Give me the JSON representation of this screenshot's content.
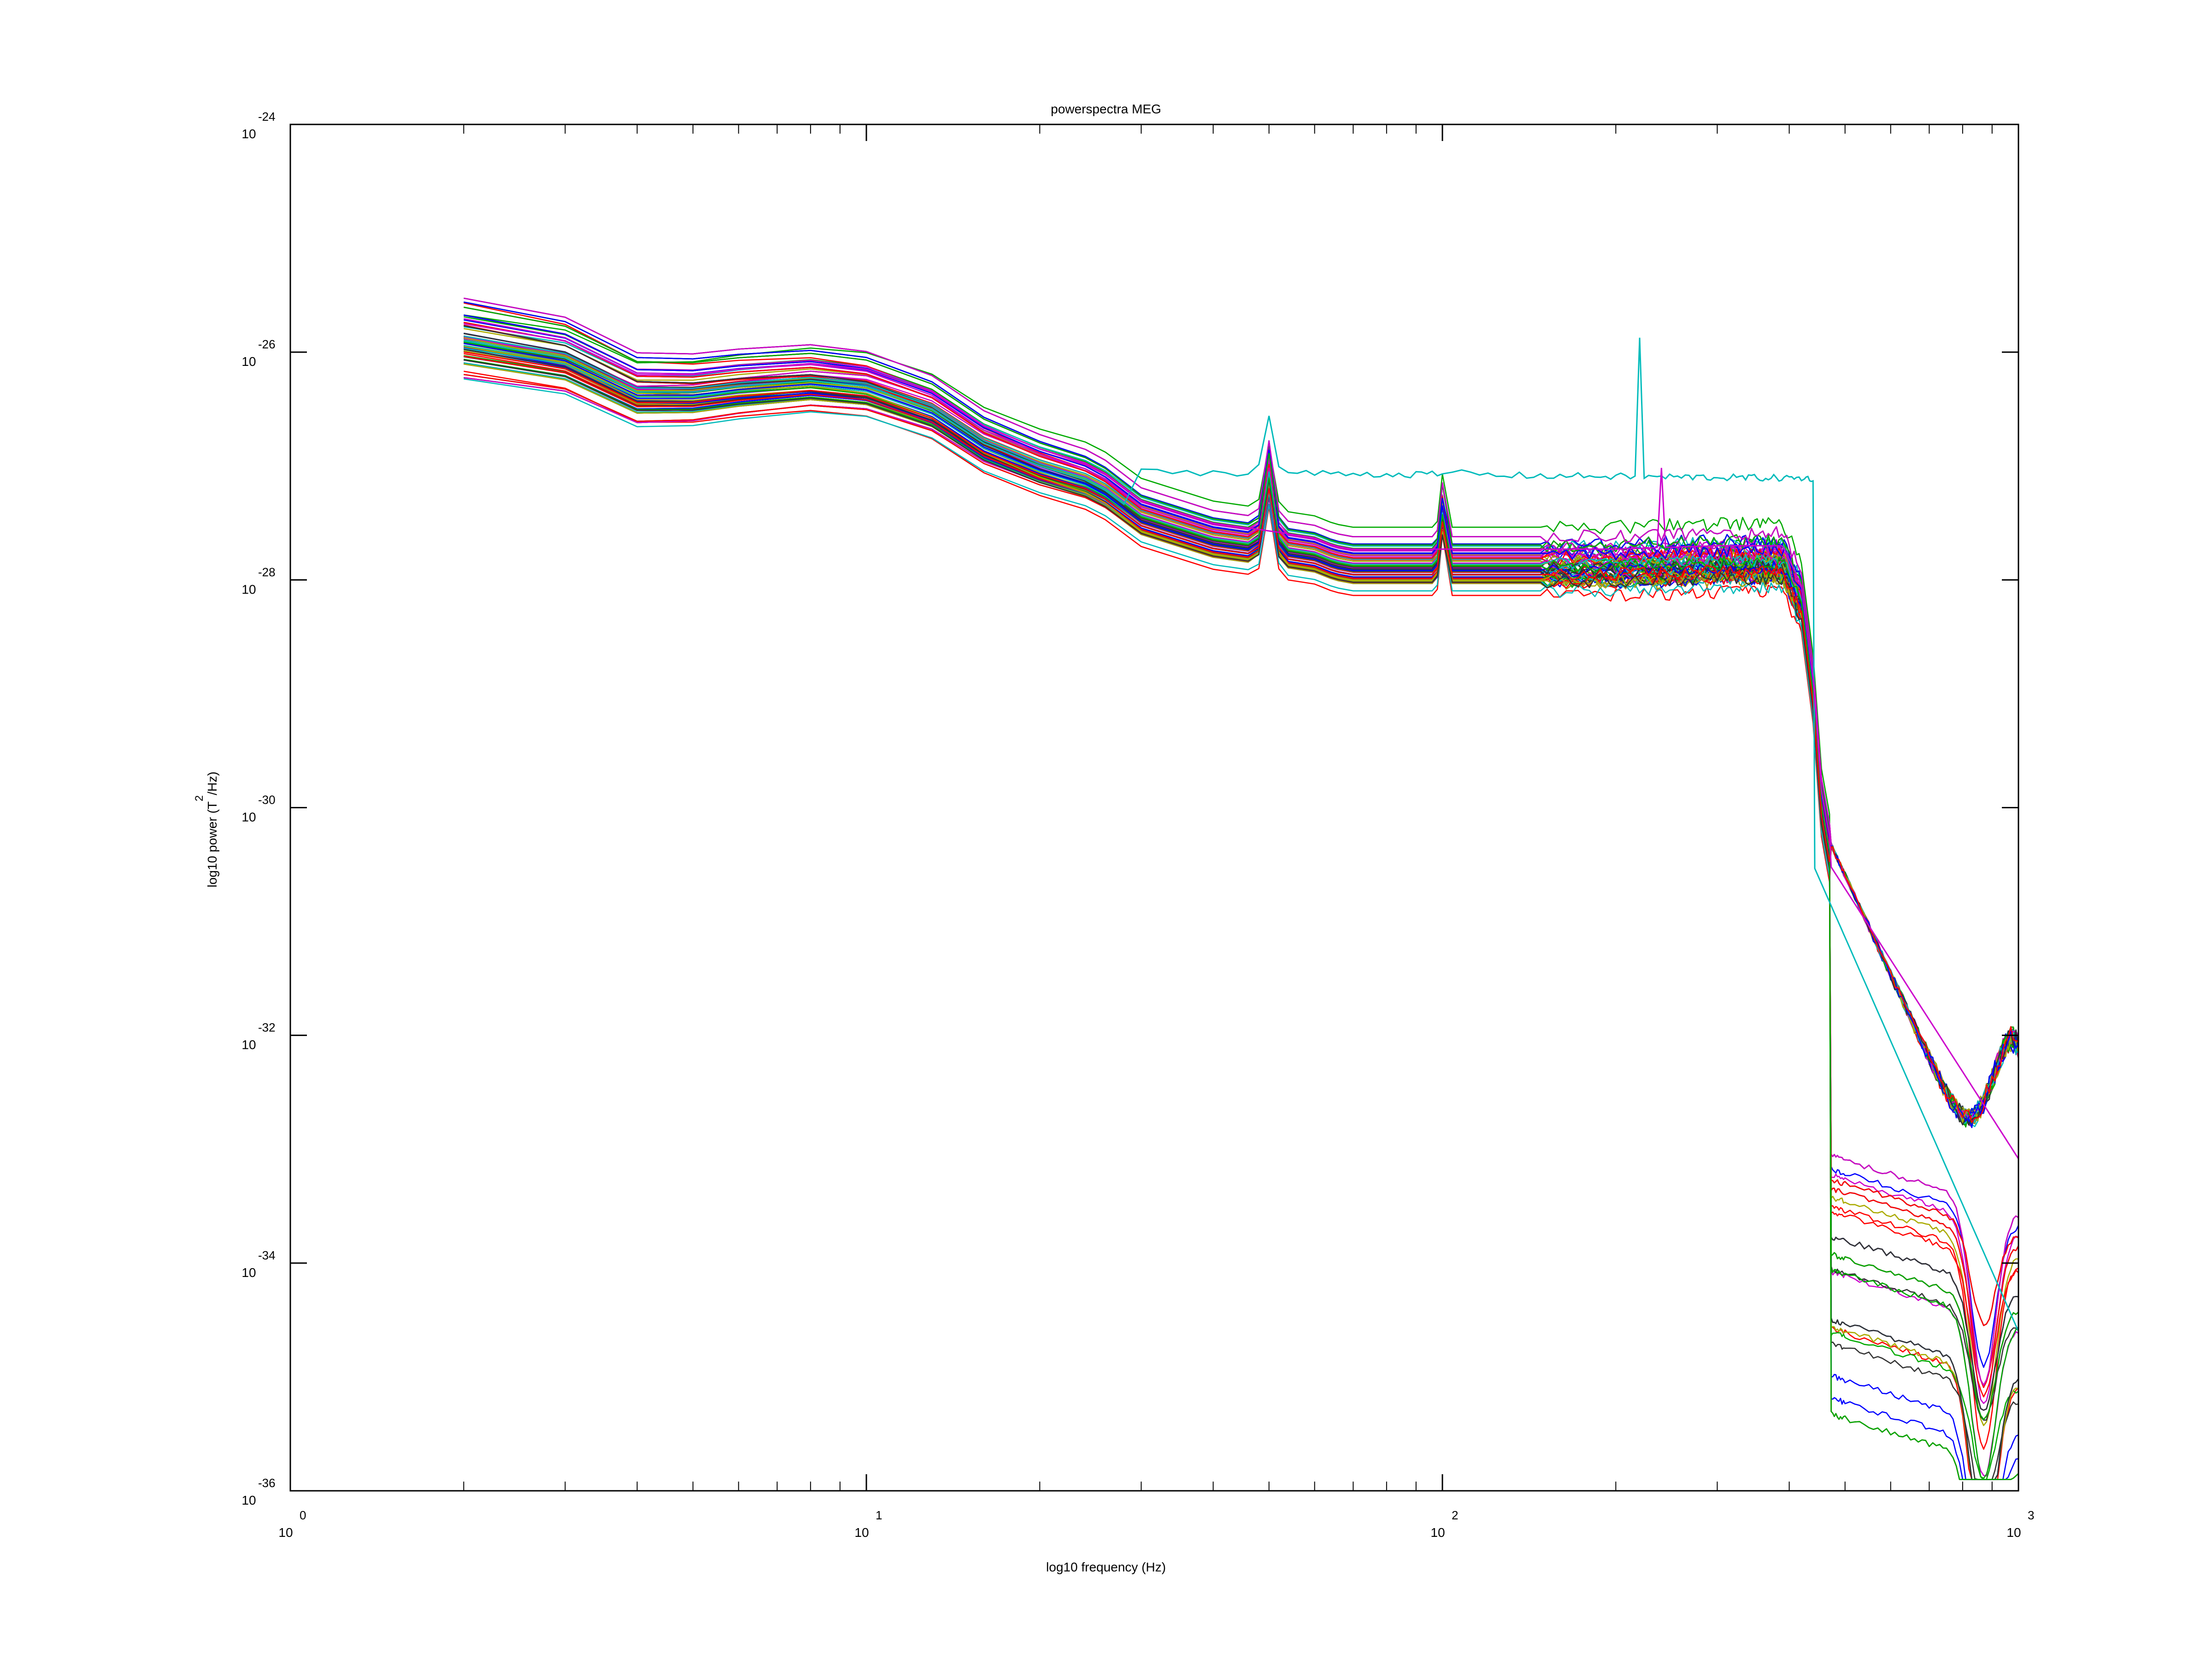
{
  "chart_data": {
    "type": "line",
    "title": "powerspectra MEG",
    "xlabel": "log10 frequency (Hz)",
    "ylabel_main": "log10 power (T",
    "ylabel_sup": "2",
    "ylabel_tail": "/Hz)",
    "x_scale": "log",
    "y_scale": "log",
    "xlim": [
      1,
      1000
    ],
    "ylim": [
      1e-36,
      1e-24
    ],
    "x_ticks": [
      {
        "value": 1,
        "base": "10",
        "exp": "0"
      },
      {
        "value": 10,
        "base": "10",
        "exp": "1"
      },
      {
        "value": 100,
        "base": "10",
        "exp": "2"
      },
      {
        "value": 1000,
        "base": "10",
        "exp": "3"
      }
    ],
    "y_ticks": [
      {
        "value": -24,
        "base": "10",
        "exp": "-24"
      },
      {
        "value": -26,
        "base": "10",
        "exp": "-26"
      },
      {
        "value": -28,
        "base": "10",
        "exp": "-28"
      },
      {
        "value": -30,
        "base": "10",
        "exp": "-30"
      },
      {
        "value": -32,
        "base": "10",
        "exp": "-32"
      },
      {
        "value": -34,
        "base": "10",
        "exp": "-34"
      },
      {
        "value": -36,
        "base": "10",
        "exp": "-36"
      }
    ],
    "grid": false,
    "legend": "none",
    "colors": [
      "#0000ff",
      "#00aa00",
      "#ff0000",
      "#00bbbb",
      "#cc00cc",
      "#aaaa00",
      "#333333"
    ],
    "series_count": 150,
    "mean_spectrum_log10": {
      "freq": [
        2,
        3,
        4,
        5,
        6,
        8,
        10,
        13,
        16,
        20,
        25,
        30,
        40,
        50,
        55,
        60,
        65,
        70,
        100,
        110,
        120,
        150,
        200,
        300,
        390,
        420,
        440,
        455,
        470,
        500,
        550,
        600,
        700,
        800,
        850,
        900,
        950,
        1000
      ],
      "log10_power": [
        -25.9,
        -26.05,
        -26.35,
        -26.35,
        -26.3,
        -26.25,
        -26.3,
        -26.5,
        -26.8,
        -27.0,
        -27.15,
        -27.45,
        -27.65,
        -27.72,
        -27.75,
        -27.78,
        -27.85,
        -27.88,
        -27.88,
        -27.88,
        -27.88,
        -27.88,
        -27.88,
        -27.85,
        -27.85,
        -28.2,
        -29.0,
        -30.0,
        -30.4,
        -30.7,
        -31.2,
        -31.8,
        -32.8,
        -33.5,
        -34.2,
        -33.8,
        -32.8,
        -32.3
      ]
    },
    "line_noise_peaks_hz": [
      50,
      100
    ],
    "outlier_channel_peaks_hz": [
      110,
      220
    ]
  }
}
